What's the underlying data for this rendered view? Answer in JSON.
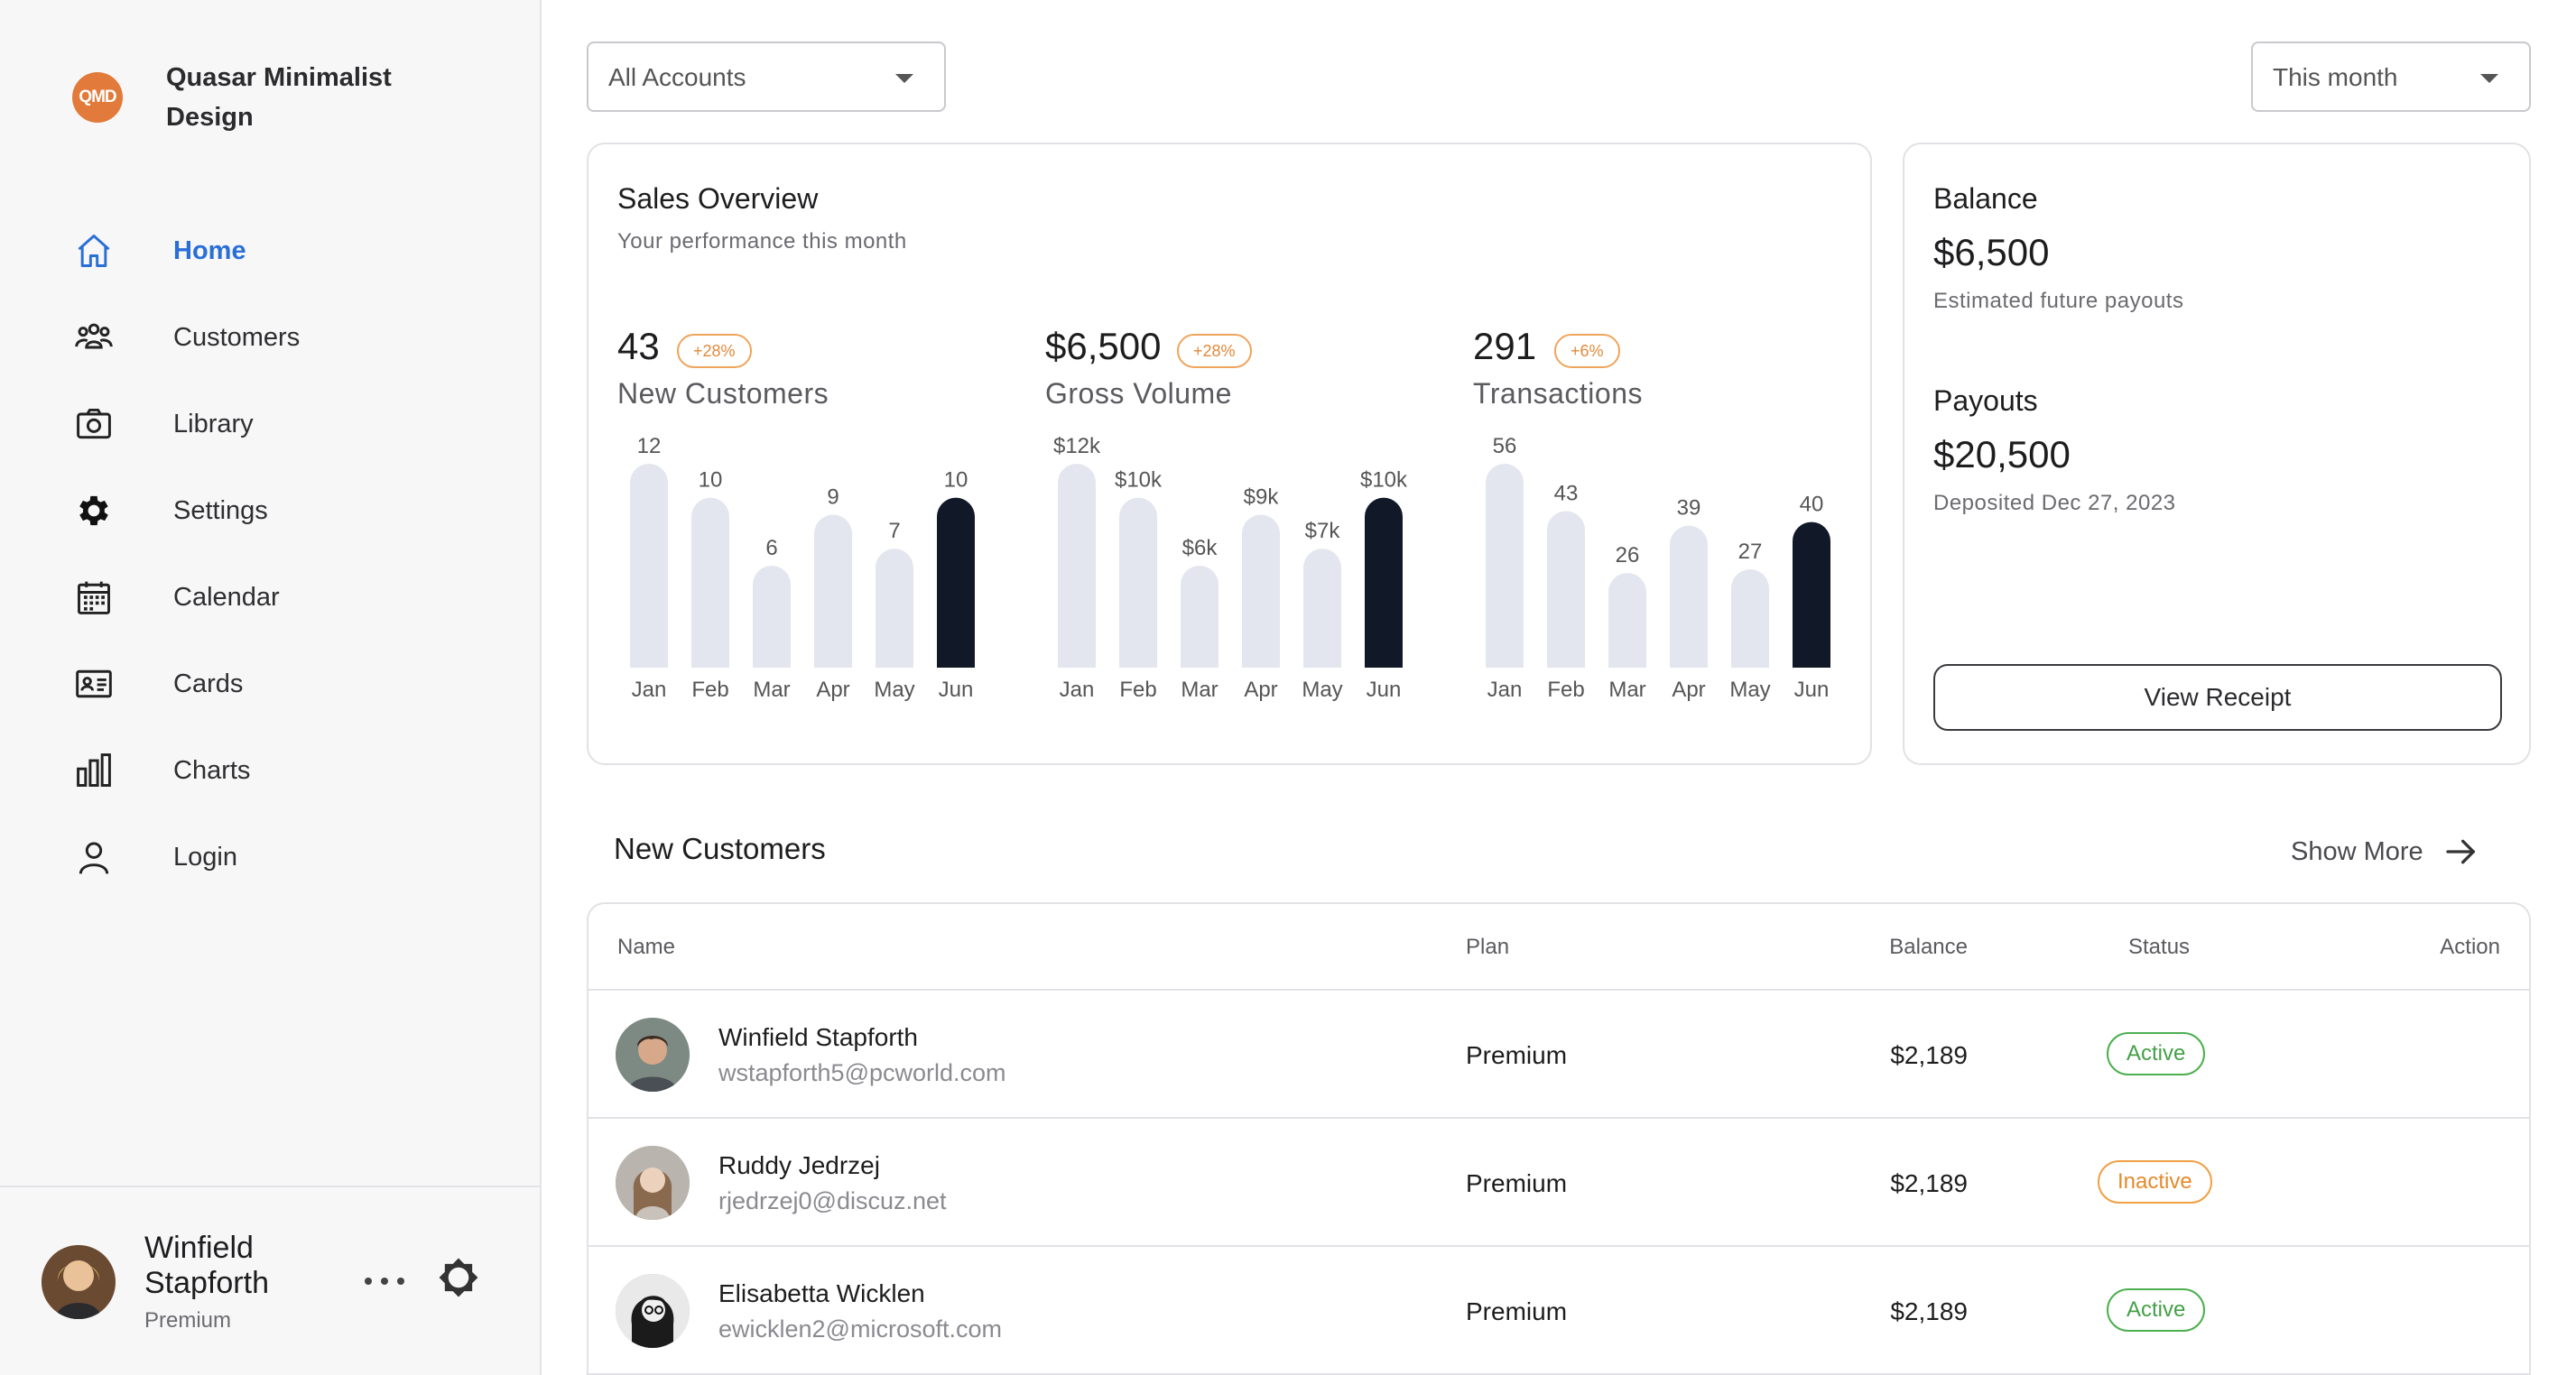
{
  "brand": {
    "initials": "QMD",
    "name": "Quasar Minimalist Design"
  },
  "nav": [
    {
      "label": "Home",
      "icon": "home-icon",
      "active": true
    },
    {
      "label": "Customers",
      "icon": "people-icon"
    },
    {
      "label": "Library",
      "icon": "camera-icon"
    },
    {
      "label": "Settings",
      "icon": "gear-icon"
    },
    {
      "label": "Calendar",
      "icon": "calendar-icon"
    },
    {
      "label": "Cards",
      "icon": "id-card-icon"
    },
    {
      "label": "Charts",
      "icon": "bar-chart-icon"
    },
    {
      "label": "Login",
      "icon": "person-icon"
    }
  ],
  "user": {
    "name": "Winfield Stapforth",
    "plan": "Premium"
  },
  "filters": {
    "accounts": "All Accounts",
    "period": "This month"
  },
  "sales": {
    "title": "Sales Overview",
    "subtitle": "Your performance this month",
    "metrics": [
      {
        "value": "43",
        "badge": "+28%",
        "label": "New Customers"
      },
      {
        "value": "$6,500",
        "badge": "+28%",
        "label": "Gross Volume"
      },
      {
        "value": "291",
        "badge": "+6%",
        "label": "Transactions"
      }
    ]
  },
  "balance": {
    "balance_label": "Balance",
    "balance_amount": "$6,500",
    "balance_note": "Estimated future payouts",
    "payouts_label": "Payouts",
    "payouts_amount": "$20,500",
    "payouts_note": "Deposited Dec 27, 2023",
    "button": "View Receipt"
  },
  "customers": {
    "title": "New Customers",
    "show_more": "Show More",
    "columns": {
      "name": "Name",
      "plan": "Plan",
      "balance": "Balance",
      "status": "Status",
      "action": "Action"
    },
    "rows": [
      {
        "name": "Winfield Stapforth",
        "email": "wstapforth5@pcworld.com",
        "plan": "Premium",
        "balance": "$2,189",
        "status": "Active"
      },
      {
        "name": "Ruddy Jedrzej",
        "email": "rjedrzej0@discuz.net",
        "plan": "Premium",
        "balance": "$2,189",
        "status": "Inactive"
      },
      {
        "name": "Elisabetta Wicklen",
        "email": "ewicklen2@microsoft.com",
        "plan": "Premium",
        "balance": "$2,189",
        "status": "Active"
      }
    ]
  },
  "colors": {
    "accent": "#2a6fd6",
    "bar": "#e3e6ee",
    "bar_highlight": "#111827",
    "badge": "#e2893a",
    "active": "#43a047",
    "inactive": "#e58a2c"
  },
  "chart_data": [
    {
      "type": "bar",
      "title": "New Customers",
      "categories": [
        "Jan",
        "Feb",
        "Mar",
        "Apr",
        "May",
        "Jun"
      ],
      "values": [
        12,
        10,
        6,
        9,
        7,
        10
      ],
      "labels": [
        "12",
        "10",
        "6",
        "9",
        "7",
        "10"
      ],
      "highlight_index": 5,
      "ylim": [
        0,
        12
      ]
    },
    {
      "type": "bar",
      "title": "Gross Volume",
      "categories": [
        "Jan",
        "Feb",
        "Mar",
        "Apr",
        "May",
        "Jun"
      ],
      "values": [
        12,
        10,
        6,
        9,
        7,
        10
      ],
      "labels": [
        "$12k",
        "$10k",
        "$6k",
        "$9k",
        "$7k",
        "$10k"
      ],
      "highlight_index": 5,
      "ylim": [
        0,
        12
      ]
    },
    {
      "type": "bar",
      "title": "Transactions",
      "categories": [
        "Jan",
        "Feb",
        "Mar",
        "Apr",
        "May",
        "Jun"
      ],
      "values": [
        56,
        43,
        26,
        39,
        27,
        40
      ],
      "labels": [
        "56",
        "43",
        "26",
        "39",
        "27",
        "40"
      ],
      "highlight_index": 5,
      "ylim": [
        0,
        56
      ]
    }
  ]
}
